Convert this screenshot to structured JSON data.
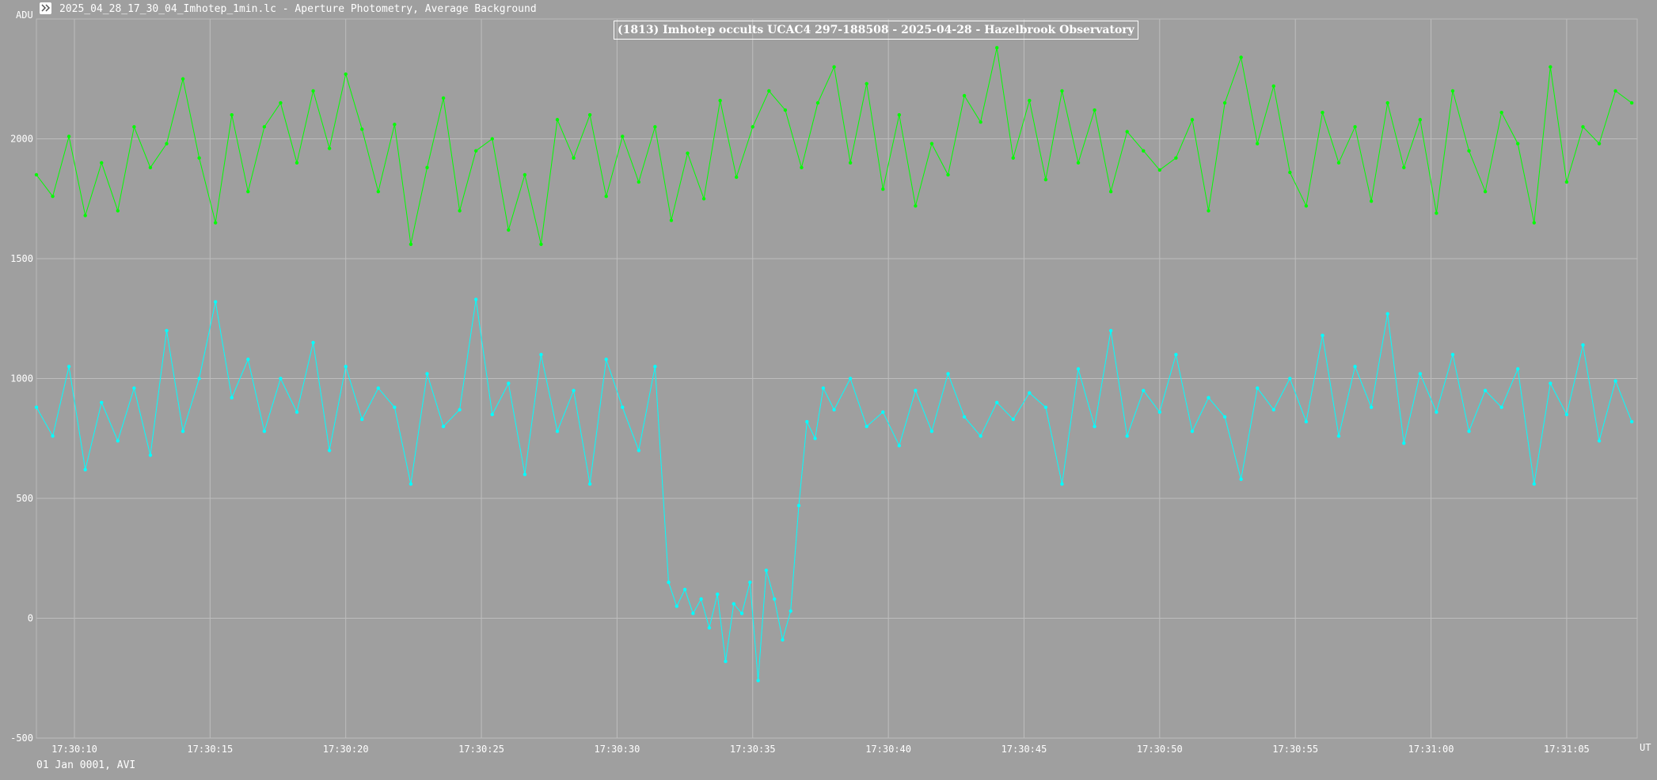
{
  "window": {
    "title": "2025_04_28_17_30_04_Imhotep_1min.lc - Aperture Photometry, Average Background",
    "icon": "app-logo-icon"
  },
  "footer": {
    "date_info": "01 Jan 0001, AVI"
  },
  "chart_data": {
    "type": "line",
    "title": "(1813) Imhotep occults UCAC4 297-188508 - 2025-04-28 - Hazelbrook Observatory",
    "ylabel": "ADU",
    "xlabel": "UT",
    "ylim": [
      -500,
      2500
    ],
    "xlim": [
      8.6,
      67.6
    ],
    "x_unit": "seconds after 17:30:00",
    "yticks": [
      -500,
      0,
      500,
      1000,
      1500,
      2000
    ],
    "xticks": [
      {
        "value": 10,
        "label": "17:30:10"
      },
      {
        "value": 15,
        "label": "17:30:15"
      },
      {
        "value": 20,
        "label": "17:30:20"
      },
      {
        "value": 25,
        "label": "17:30:25"
      },
      {
        "value": 30,
        "label": "17:30:30"
      },
      {
        "value": 35,
        "label": "17:30:35"
      },
      {
        "value": 40,
        "label": "17:30:40"
      },
      {
        "value": 45,
        "label": "17:30:45"
      },
      {
        "value": 50,
        "label": "17:30:50"
      },
      {
        "value": 55,
        "label": "17:30:55"
      },
      {
        "value": 60,
        "label": "17:31:00"
      },
      {
        "value": 65,
        "label": "17:31:05"
      }
    ],
    "grid": true,
    "legend": "none",
    "series": [
      {
        "color": "#00ff00",
        "x": [
          8.6,
          9.2,
          9.8,
          10.4,
          11.0,
          11.6,
          12.2,
          12.8,
          13.4,
          14.0,
          14.6,
          15.2,
          15.8,
          16.4,
          17.0,
          17.6,
          18.2,
          18.8,
          19.4,
          20.0,
          20.6,
          21.2,
          21.8,
          22.4,
          23.0,
          23.6,
          24.2,
          24.8,
          25.4,
          26.0,
          26.6,
          27.2,
          27.8,
          28.4,
          29.0,
          29.6,
          30.2,
          30.8,
          31.4,
          32.0,
          32.6,
          33.2,
          33.8,
          34.4,
          35.0,
          35.6,
          36.2,
          36.8,
          37.4,
          38.0,
          38.6,
          39.2,
          39.8,
          40.4,
          41.0,
          41.6,
          42.2,
          42.8,
          43.4,
          44.0,
          44.6,
          45.2,
          45.8,
          46.4,
          47.0,
          47.6,
          48.2,
          48.8,
          49.4,
          50.0,
          50.6,
          51.2,
          51.8,
          52.4,
          53.0,
          53.6,
          54.2,
          54.8,
          55.4,
          56.0,
          56.6,
          57.2,
          57.8,
          58.4,
          59.0,
          59.6,
          60.2,
          60.8,
          61.4,
          62.0,
          62.6,
          63.2,
          63.8,
          64.4,
          65.0,
          65.6,
          66.2,
          66.8,
          67.4
        ],
        "values": [
          1850,
          1760,
          2010,
          1680,
          1900,
          1700,
          2050,
          1880,
          1980,
          2250,
          1920,
          1650,
          2100,
          1780,
          2050,
          2150,
          1900,
          2200,
          1960,
          2270,
          2040,
          1780,
          2060,
          1560,
          1880,
          2170,
          1700,
          1950,
          2000,
          1620,
          1850,
          1560,
          2080,
          1920,
          2100,
          1760,
          2010,
          1820,
          2050,
          1660,
          1940,
          1750,
          2160,
          1840,
          2050,
          2200,
          2120,
          1880,
          2150,
          2300,
          1900,
          2230,
          1790,
          2100,
          1720,
          1980,
          1850,
          2180,
          2070,
          2380,
          1920,
          2160,
          1830,
          2200,
          1900,
          2120,
          1780,
          2030,
          1950,
          1870,
          1920,
          2080,
          1700,
          2150,
          2340,
          1980,
          2220,
          1860,
          1720,
          2110,
          1900,
          2050,
          1740,
          2150,
          1880,
          2080,
          1690,
          2200,
          1950,
          1780,
          2110,
          1980,
          1650,
          2300,
          1820,
          2050,
          1980,
          2200,
          2150
        ]
      },
      {
        "color": "#00ffff",
        "x": [
          8.6,
          9.2,
          9.8,
          10.4,
          11.0,
          11.6,
          12.2,
          12.8,
          13.4,
          14.0,
          14.6,
          15.2,
          15.8,
          16.4,
          17.0,
          17.6,
          18.2,
          18.8,
          19.4,
          20.0,
          20.6,
          21.2,
          21.8,
          22.4,
          23.0,
          23.6,
          24.2,
          24.8,
          25.4,
          26.0,
          26.6,
          27.2,
          27.8,
          28.4,
          29.0,
          29.6,
          30.2,
          30.8,
          31.4,
          31.9,
          32.2,
          32.5,
          32.8,
          33.1,
          33.4,
          33.7,
          34.0,
          34.3,
          34.6,
          34.9,
          35.2,
          35.5,
          35.8,
          36.1,
          36.4,
          36.7,
          37.0,
          37.3,
          37.6,
          38.0,
          38.6,
          39.2,
          39.8,
          40.4,
          41.0,
          41.6,
          42.2,
          42.8,
          43.4,
          44.0,
          44.6,
          45.2,
          45.8,
          46.4,
          47.0,
          47.6,
          48.2,
          48.8,
          49.4,
          50.0,
          50.6,
          51.2,
          51.8,
          52.4,
          53.0,
          53.6,
          54.2,
          54.8,
          55.4,
          56.0,
          56.6,
          57.2,
          57.8,
          58.4,
          59.0,
          59.6,
          60.2,
          60.8,
          61.4,
          62.0,
          62.6,
          63.2,
          63.8,
          64.4,
          65.0,
          65.6,
          66.2,
          66.8,
          67.4
        ],
        "values": [
          880,
          760,
          1050,
          620,
          900,
          740,
          960,
          680,
          1200,
          780,
          1000,
          1320,
          920,
          1080,
          780,
          1000,
          860,
          1150,
          700,
          1050,
          830,
          960,
          880,
          560,
          1020,
          800,
          870,
          1330,
          850,
          980,
          600,
          1100,
          780,
          950,
          560,
          1080,
          880,
          700,
          1050,
          150,
          50,
          120,
          20,
          80,
          -40,
          100,
          -180,
          60,
          20,
          150,
          -260,
          200,
          80,
          -90,
          30,
          470,
          820,
          750,
          960,
          870,
          1000,
          800,
          860,
          720,
          950,
          780,
          1020,
          840,
          760,
          900,
          830,
          940,
          880,
          560,
          1040,
          800,
          1200,
          760,
          950,
          860,
          1100,
          780,
          920,
          840,
          580,
          960,
          870,
          1000,
          820,
          1180,
          760,
          1050,
          880,
          1270,
          730,
          1020,
          860,
          1100,
          780,
          950,
          880,
          1040,
          560,
          980,
          850,
          1140,
          740,
          990,
          820
        ]
      }
    ]
  }
}
